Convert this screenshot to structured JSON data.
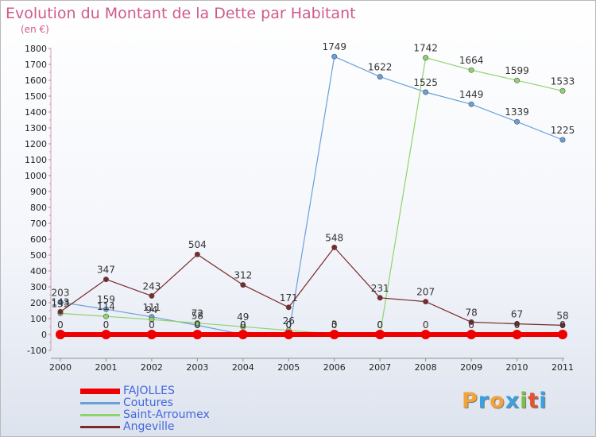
{
  "title": "Evolution du Montant de la Dette par Habitant",
  "subtitle": "(en €)",
  "logo": {
    "letters": [
      "P",
      "r",
      "o",
      "x",
      "i",
      "t",
      "i"
    ],
    "colors": [
      "#f2a33a",
      "#3aa0e0",
      "#f2a33a",
      "#3aa0e0",
      "#7bc043",
      "#e2532f",
      "#3aa0e0"
    ]
  },
  "chart_data": {
    "type": "line",
    "x": [
      "2000",
      "2001",
      "2002",
      "2003",
      "2004",
      "2005",
      "2006",
      "2007",
      "2008",
      "2009",
      "2010",
      "2011"
    ],
    "ylim": [
      -100,
      1800
    ],
    "yticks": [
      "-100",
      "0",
      "100",
      "200",
      "300",
      "400",
      "500",
      "600",
      "700",
      "800",
      "900",
      "1000",
      "1100",
      "1200",
      "1300",
      "1400",
      "1500",
      "1600",
      "1700",
      "1800"
    ],
    "grid": false,
    "legend_position": "bottom-left",
    "series": [
      {
        "name": "FAJOLLES",
        "color": "#ee0000",
        "values": [
          0,
          0,
          0,
          0,
          0,
          0,
          0,
          0,
          0,
          0,
          0,
          0
        ],
        "labels": [
          "0",
          "0",
          "0",
          "0",
          "0",
          "0",
          "0",
          "0",
          "0",
          "0",
          "0",
          "0"
        ]
      },
      {
        "name": "Coutures",
        "color": "#6aa0d8",
        "values": [
          203,
          159,
          111,
          58,
          0,
          0,
          1749,
          1622,
          1525,
          1449,
          1339,
          1225
        ],
        "labels": [
          "203",
          "159",
          "111",
          "58",
          "0",
          "0",
          "1749",
          "1622",
          "1525",
          "1449",
          "1339",
          "1225"
        ]
      },
      {
        "name": "Saint-Arroumex",
        "color": "#8fd46a",
        "values": [
          133,
          114,
          94,
          72,
          49,
          26,
          3,
          0,
          1742,
          1664,
          1599,
          1533
        ],
        "labels": [
          "133",
          "114",
          "94",
          "72",
          "49",
          "26",
          "3",
          "0",
          "1742",
          "1664",
          "1599",
          "1533"
        ]
      },
      {
        "name": "Angeville",
        "color": "#7a2a2a",
        "values": [
          143,
          347,
          243,
          504,
          312,
          171,
          548,
          231,
          207,
          78,
          67,
          58
        ],
        "labels": [
          "143",
          "347",
          "243",
          "504",
          "312",
          "171",
          "548",
          "231",
          "207",
          "78",
          "67",
          "58"
        ]
      }
    ]
  }
}
